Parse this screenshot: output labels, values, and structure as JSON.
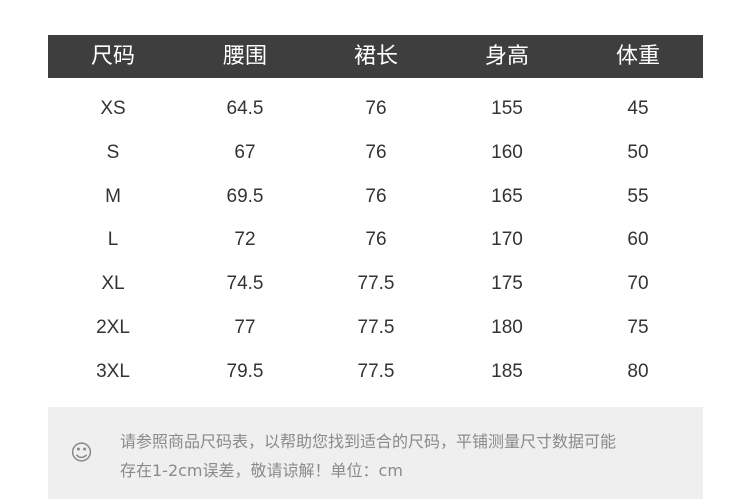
{
  "table": {
    "headers": [
      "尺码",
      "腰围",
      "裙长",
      "身高",
      "体重"
    ],
    "rows": [
      [
        "XS",
        "64.5",
        "76",
        "155",
        "45"
      ],
      [
        "S",
        "67",
        "76",
        "160",
        "50"
      ],
      [
        "M",
        "69.5",
        "76",
        "165",
        "55"
      ],
      [
        "L",
        "72",
        "76",
        "170",
        "60"
      ],
      [
        "XL",
        "74.5",
        "77.5",
        "175",
        "70"
      ],
      [
        "2XL",
        "77",
        "77.5",
        "180",
        "75"
      ],
      [
        "3XL",
        "79.5",
        "77.5",
        "185",
        "80"
      ]
    ]
  },
  "note": {
    "icon": "smiley-face-icon",
    "line1": "请参照商品尺码表，以帮助您找到适合的尺码，平铺测量尺寸数据可能",
    "line2": "存在1-2cm误差，敬请谅解！单位：cm"
  }
}
